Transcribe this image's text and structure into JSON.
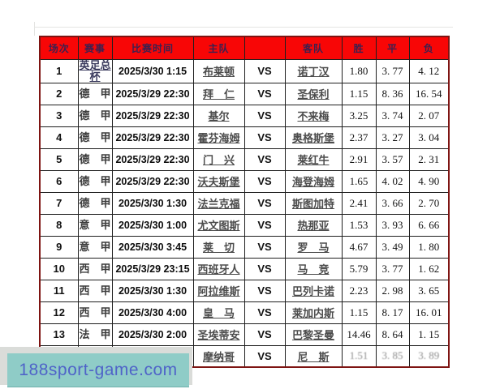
{
  "colors": {
    "header_bg": "#f80606",
    "header_text": "#3b2150",
    "outer_border": "#7e1412",
    "watermark_bg": "#8fccc7",
    "watermark_text_color": "#4f63c8"
  },
  "watermark": {
    "text": "188sport-game.com"
  },
  "chart_data": {
    "type": "table",
    "title": "",
    "columns": [
      "场次",
      "赛事",
      "比赛时间",
      "主队",
      "",
      "客队",
      "胜",
      "平",
      "负"
    ],
    "rows": [
      {
        "no": "1",
        "league": "英足总杯",
        "league_underline": true,
        "time": "2025/3/30 1:15",
        "home": "布莱顿",
        "vs": "VS",
        "away": "诺丁汉",
        "win": "1.80",
        "draw": "3. 77",
        "lose": "4. 12"
      },
      {
        "no": "2",
        "league": "德　甲",
        "time": "2025/3/29 22:30",
        "home": "拜　仁",
        "vs": "VS",
        "away": "圣保利",
        "win": "1.15",
        "draw": "8. 36",
        "lose": "16. 54"
      },
      {
        "no": "3",
        "league": "德　甲",
        "time": "2025/3/29 22:30",
        "home": "基尔",
        "vs": "VS",
        "away": "不来梅",
        "win": "3.25",
        "draw": "3. 74",
        "lose": "2. 07"
      },
      {
        "no": "4",
        "league": "德　甲",
        "time": "2025/3/29 22:30",
        "home": "霍芬海姆",
        "vs": "VS",
        "away": "奥格斯堡",
        "win": "2.37",
        "draw": "3. 27",
        "lose": "3. 04"
      },
      {
        "no": "5",
        "league": "德　甲",
        "time": "2025/3/29 22:30",
        "home": "门　兴",
        "vs": "VS",
        "away": "莱红牛",
        "win": "2.91",
        "draw": "3. 57",
        "lose": "2. 31"
      },
      {
        "no": "6",
        "league": "德　甲",
        "time": "2025/3/29 22:30",
        "home": "沃夫斯堡",
        "vs": "VS",
        "away": "海登海姆",
        "win": "1.65",
        "draw": "4. 02",
        "lose": "4. 90"
      },
      {
        "no": "7",
        "league": "德　甲",
        "time": "2025/3/30 1:30",
        "home": "法兰克福",
        "vs": "VS",
        "away": "斯图加特",
        "win": "2.41",
        "draw": "3. 66",
        "lose": "2. 70"
      },
      {
        "no": "8",
        "league": "意　甲",
        "time": "2025/3/30 1:00",
        "home": "尤文图斯",
        "vs": "VS",
        "away": "热那亚",
        "win": "1.53",
        "draw": "3. 93",
        "lose": "6. 66"
      },
      {
        "no": "9",
        "league": "意　甲",
        "time": "2025/3/30 3:45",
        "home": "莱　切",
        "vs": "VS",
        "away": "罗　马",
        "win": "4.67",
        "draw": "3. 49",
        "lose": "1. 80"
      },
      {
        "no": "10",
        "league": "西　甲",
        "time": "2025/3/29 23:15",
        "home": "西班牙人",
        "vs": "VS",
        "away": "马　竞",
        "win": "5.79",
        "draw": "3. 77",
        "lose": "1. 62"
      },
      {
        "no": "11",
        "league": "西　甲",
        "time": "2025/3/30 1:30",
        "home": "阿拉维斯",
        "vs": "VS",
        "away": "巴列卡诺",
        "win": "2.23",
        "draw": "2. 98",
        "lose": "3. 65"
      },
      {
        "no": "12",
        "league": "西　甲",
        "time": "2025/3/30 4:00",
        "home": "皇　马",
        "vs": "VS",
        "away": "莱加内斯",
        "win": "1.15",
        "draw": "8. 17",
        "lose": "16. 01"
      },
      {
        "no": "13",
        "league": "法　甲",
        "time": "2025/3/30 2:00",
        "home": "圣埃蒂安",
        "vs": "VS",
        "away": "巴黎圣曼",
        "win": "14.46",
        "draw": "8. 64",
        "lose": "1. 15"
      },
      {
        "no": "14",
        "league": "法　甲",
        "time": "2025/3/30 4:05",
        "home": "摩纳哥",
        "vs": "VS",
        "away": "尼　斯",
        "win": "1.51",
        "draw": "3. 85",
        "lose": "3. 89",
        "faded": true
      }
    ]
  }
}
